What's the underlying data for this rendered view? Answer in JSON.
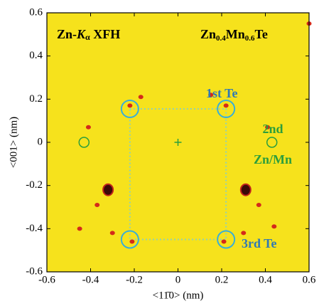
{
  "chart_data": {
    "type": "scatter",
    "title_parts": [
      "Zn-",
      "K",
      "α",
      " XFH"
    ],
    "sample_parts": [
      "Zn",
      "0.4",
      "Mn",
      "0.6",
      "Te"
    ],
    "x_label": "<11̄0> (nm)",
    "y_label": "<001> (nm)",
    "annotations": {
      "first": "1st Te",
      "second": "2nd",
      "second_b": "Zn/Mn",
      "third": "3rd Te"
    },
    "xlim": [
      -0.6,
      0.6
    ],
    "ylim": [
      -0.6,
      0.6
    ],
    "xticks": [
      -0.6,
      -0.4,
      -0.2,
      0,
      0.2,
      0.4,
      0.6
    ],
    "yticks": [
      -0.6,
      -0.4,
      -0.2,
      0,
      0.2,
      0.4,
      0.6
    ],
    "background": "#f6e21c",
    "series": [
      {
        "marker": "ring",
        "color": "#3aaed6",
        "x": [
          -0.22,
          0.22,
          -0.22,
          0.22
        ],
        "y": [
          0.155,
          0.155,
          -0.45,
          -0.45
        ]
      },
      {
        "marker": "ring-small",
        "color": "#2c9e3c",
        "x": [
          -0.43,
          0.43
        ],
        "y": [
          0,
          0
        ]
      },
      {
        "marker": "plus",
        "color": "#2c9e3c",
        "x": [
          0
        ],
        "y": [
          0
        ]
      },
      {
        "marker": "spot",
        "color": "#d42a1a",
        "x": [
          -0.22,
          0.22,
          -0.21,
          0.21,
          -0.45,
          0.44,
          -0.37,
          0.37,
          -0.17,
          0.15,
          -0.3,
          0.3,
          -0.41,
          0.41,
          0.6
        ],
        "y": [
          0.17,
          0.17,
          -0.46,
          -0.46,
          -0.4,
          -0.39,
          -0.29,
          -0.29,
          0.21,
          0.22,
          -0.42,
          -0.42,
          0.07,
          0.07,
          0.55
        ]
      },
      {
        "marker": "dark",
        "color": "#3a0a08",
        "x": [
          -0.32,
          0.31
        ],
        "y": [
          -0.22,
          -0.22
        ]
      }
    ]
  }
}
